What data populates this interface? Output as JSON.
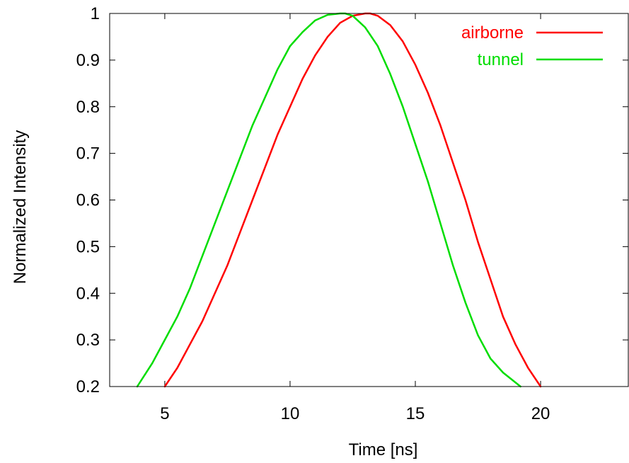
{
  "chart_data": {
    "type": "line",
    "title": "",
    "xlabel": "Time [ns]",
    "ylabel": "Normalized Intensity",
    "xlim": [
      2.8,
      23.5
    ],
    "ylim": [
      0.2,
      1.0
    ],
    "xticks": [
      5,
      10,
      15,
      20
    ],
    "yticks": [
      0.2,
      0.3,
      0.4,
      0.5,
      0.6,
      0.7,
      0.8,
      0.9,
      1.0
    ],
    "xtick_labels": [
      "5",
      "10",
      "15",
      "20"
    ],
    "ytick_labels": [
      "0.2",
      "0.3",
      "0.4",
      "0.5",
      "0.6",
      "0.7",
      "0.8",
      "0.9",
      "1"
    ],
    "grid": false,
    "legend_position": "top-right",
    "series": [
      {
        "name": "airborne",
        "color": "#ff0000",
        "x": [
          5.0,
          5.5,
          6.0,
          6.5,
          7.0,
          7.5,
          8.0,
          8.5,
          9.0,
          9.5,
          10.0,
          10.5,
          11.0,
          11.5,
          12.0,
          12.5,
          13.0,
          13.2,
          13.5,
          14.0,
          14.5,
          15.0,
          15.5,
          16.0,
          16.5,
          17.0,
          17.5,
          18.0,
          18.5,
          19.0,
          19.5,
          20.0
        ],
        "y": [
          0.2,
          0.24,
          0.29,
          0.34,
          0.4,
          0.46,
          0.53,
          0.6,
          0.67,
          0.74,
          0.8,
          0.86,
          0.91,
          0.95,
          0.98,
          0.995,
          1.0,
          1.0,
          0.995,
          0.975,
          0.94,
          0.89,
          0.83,
          0.76,
          0.68,
          0.6,
          0.51,
          0.43,
          0.35,
          0.29,
          0.24,
          0.2
        ]
      },
      {
        "name": "tunnel",
        "color": "#00dd00",
        "x": [
          3.9,
          4.5,
          5.0,
          5.5,
          6.0,
          6.5,
          7.0,
          7.5,
          8.0,
          8.5,
          9.0,
          9.5,
          10.0,
          10.5,
          11.0,
          11.5,
          12.0,
          12.2,
          12.5,
          13.0,
          13.5,
          14.0,
          14.5,
          15.0,
          15.5,
          16.0,
          16.5,
          17.0,
          17.5,
          18.0,
          18.5,
          19.2
        ],
        "y": [
          0.2,
          0.25,
          0.3,
          0.35,
          0.41,
          0.48,
          0.55,
          0.62,
          0.69,
          0.76,
          0.82,
          0.88,
          0.93,
          0.96,
          0.985,
          0.997,
          1.0,
          1.0,
          0.995,
          0.97,
          0.93,
          0.87,
          0.8,
          0.72,
          0.64,
          0.55,
          0.46,
          0.38,
          0.31,
          0.26,
          0.23,
          0.2
        ]
      }
    ]
  }
}
